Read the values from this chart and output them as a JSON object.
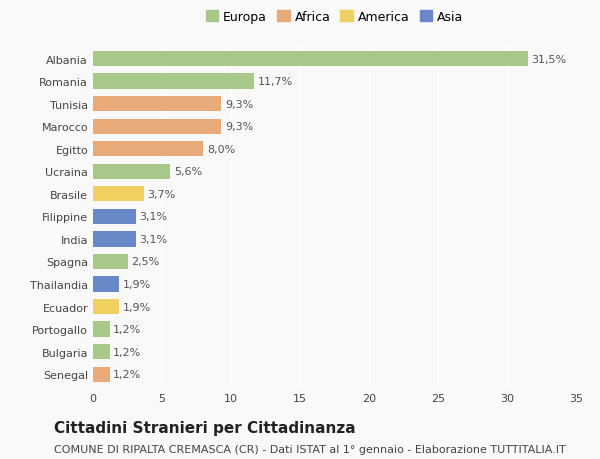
{
  "countries": [
    "Albania",
    "Romania",
    "Tunisia",
    "Marocco",
    "Egitto",
    "Ucraina",
    "Brasile",
    "Filippine",
    "India",
    "Spagna",
    "Thailandia",
    "Ecuador",
    "Portogallo",
    "Bulgaria",
    "Senegal"
  ],
  "values": [
    31.5,
    11.7,
    9.3,
    9.3,
    8.0,
    5.6,
    3.7,
    3.1,
    3.1,
    2.5,
    1.9,
    1.9,
    1.2,
    1.2,
    1.2
  ],
  "labels": [
    "31,5%",
    "11,7%",
    "9,3%",
    "9,3%",
    "8,0%",
    "5,6%",
    "3,7%",
    "3,1%",
    "3,1%",
    "2,5%",
    "1,9%",
    "1,9%",
    "1,2%",
    "1,2%",
    "1,2%"
  ],
  "continents": [
    "Europa",
    "Europa",
    "Africa",
    "Africa",
    "Africa",
    "Europa",
    "America",
    "Asia",
    "Asia",
    "Europa",
    "Asia",
    "America",
    "Europa",
    "Europa",
    "Africa"
  ],
  "colors": {
    "Europa": "#a8c88a",
    "Africa": "#e8aa78",
    "America": "#f0d060",
    "Asia": "#6888c8"
  },
  "legend_order": [
    "Europa",
    "Africa",
    "America",
    "Asia"
  ],
  "title": "Cittadini Stranieri per Cittadinanza",
  "subtitle": "COMUNE DI RIPALTA CREMASCA (CR) - Dati ISTAT al 1° gennaio - Elaborazione TUTTITALIA.IT",
  "xlim": [
    0,
    35
  ],
  "xticks": [
    0,
    5,
    10,
    15,
    20,
    25,
    30,
    35
  ],
  "background_color": "#f9f9f9",
  "bar_height": 0.68,
  "title_fontsize": 11,
  "subtitle_fontsize": 8,
  "label_fontsize": 8,
  "tick_fontsize": 8,
  "legend_fontsize": 9
}
